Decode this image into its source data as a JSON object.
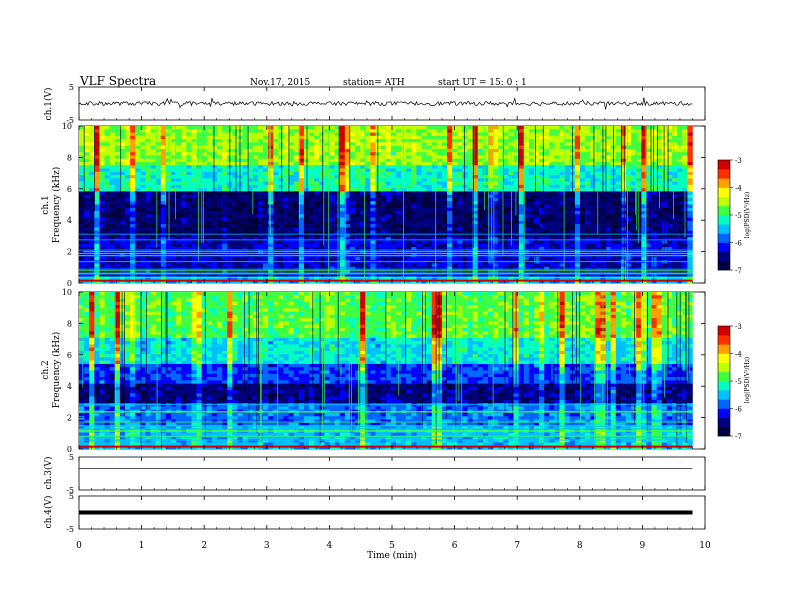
{
  "header": {
    "title": "VLF  Spectra",
    "date": "Nov.17, 2015",
    "station": "station= ATH",
    "start": "start  UT  =    15: 0  : 1"
  },
  "panel_labels": {
    "ch1_wave": "ch.1(V)",
    "ch1_spec_channel": "ch.1",
    "ch1_spec_axis": "Frequency  (kHz)",
    "ch2_spec_channel": "ch.2",
    "ch2_spec_axis": "Frequency  (kHz)",
    "ch3_wave": "ch.3(V)",
    "ch4_wave": "ch.4(V)",
    "time_axis": "Time  (min)",
    "colorbar_label_1": "log(PSD(V²/Hz)",
    "colorbar_label_2": "log(PSD(V²/Hz)"
  },
  "colors": {
    "colormap": [
      "#000040",
      "#00007f",
      "#0000ff",
      "#0066ff",
      "#00c0ff",
      "#00ffc0",
      "#40ff40",
      "#c0ff00",
      "#ffff00",
      "#ffa000",
      "#ff3000",
      "#d00000"
    ],
    "trace": "#000000"
  },
  "chart_data": [
    {
      "type": "line",
      "panel": "ch.1(V)",
      "xlim": [
        0,
        10
      ],
      "ylim": [
        -5,
        5
      ],
      "y_ticks": [
        "5",
        "-5"
      ],
      "note_series": "waveform noise around ~0 V, spanning roughly -1 to +1 V"
    },
    {
      "type": "heatmap",
      "panel": "ch.1",
      "xlim": [
        0,
        9.8
      ],
      "ylim": [
        0,
        10
      ],
      "y_ticks": [
        "0",
        "2",
        "4",
        "6",
        "8",
        "10"
      ],
      "colorbar": {
        "min": -7,
        "max": -3,
        "ticks": [
          "-3",
          "-4",
          "-5",
          "-6",
          "-7"
        ]
      },
      "bands_khz": [
        {
          "from": 0,
          "to": 0.5,
          "level": -5.5
        },
        {
          "from": 0.5,
          "to": 3.0,
          "level": -6.3
        },
        {
          "from": 3.0,
          "to": 5.8,
          "level": -6.6
        },
        {
          "from": 5.8,
          "to": 7.5,
          "level": -5.2
        },
        {
          "from": 7.5,
          "to": 10,
          "level": -4.6
        }
      ]
    },
    {
      "type": "heatmap",
      "panel": "ch.2",
      "xlim": [
        0,
        9.8
      ],
      "ylim": [
        0,
        10
      ],
      "y_ticks": [
        "0",
        "2",
        "4",
        "6",
        "8",
        "10"
      ],
      "colorbar": {
        "min": -7,
        "max": -3,
        "ticks": [
          "-3",
          "-4",
          "-5",
          "-6",
          "-7"
        ]
      },
      "bands_khz": [
        {
          "from": 0,
          "to": 1.5,
          "level": -5.5
        },
        {
          "from": 1.5,
          "to": 3.0,
          "level": -5.8
        },
        {
          "from": 3.0,
          "to": 4.2,
          "level": -6.5
        },
        {
          "from": 4.2,
          "to": 5.5,
          "level": -6.0
        },
        {
          "from": 5.5,
          "to": 7.0,
          "level": -5.3
        },
        {
          "from": 7.0,
          "to": 10,
          "level": -4.8
        }
      ]
    },
    {
      "type": "line",
      "panel": "ch.3(V)",
      "xlim": [
        0,
        10
      ],
      "ylim": [
        -5,
        5
      ],
      "y_ticks": [
        "5",
        "-5"
      ],
      "note_series": "near-flat trace slightly above 0 V"
    },
    {
      "type": "line",
      "panel": "ch.4(V)",
      "xlim": [
        0,
        10
      ],
      "ylim": [
        -5,
        5
      ],
      "y_ticks": [
        "5",
        "-5"
      ],
      "note_series": "thick flat trace near 0 V"
    },
    {
      "type": "axis",
      "panel": "time",
      "x_ticks": [
        "0",
        "1",
        "2",
        "3",
        "4",
        "5",
        "6",
        "7",
        "8",
        "9",
        "10"
      ]
    }
  ]
}
